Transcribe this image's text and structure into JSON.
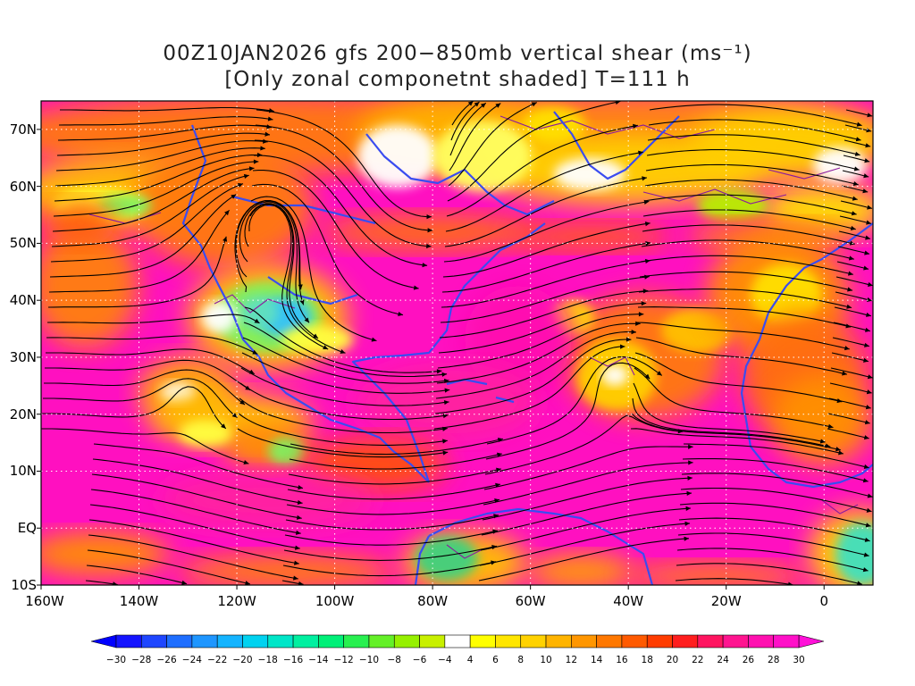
{
  "title": {
    "line1": "00Z10JAN2026 gfs 200−850mb vertical shear (ms⁻¹)",
    "line2": "[Only zonal componetnt shaded] T=111 h"
  },
  "map": {
    "lon_range": [
      -160,
      10
    ],
    "lat_range": [
      -10,
      75
    ],
    "lat_labels": [
      "70N",
      "60N",
      "50N",
      "40N",
      "30N",
      "20N",
      "10N",
      "EQ",
      "10S"
    ],
    "lat_values": [
      70,
      60,
      50,
      40,
      30,
      20,
      10,
      0,
      -10
    ],
    "lon_labels": [
      "160W",
      "140W",
      "120W",
      "100W",
      "80W",
      "60W",
      "40W",
      "20W",
      "0"
    ],
    "lon_values": [
      -160,
      -140,
      -120,
      -100,
      -80,
      -60,
      -40,
      -20,
      0
    ],
    "grid": true,
    "coastline_color": "#3a4cf0",
    "contour_color": "#8b1a9e",
    "streamline_color": "#000000",
    "background_field": "magenta-dominant strong westerly shear"
  },
  "colorbar": {
    "ticks": [
      "−30",
      "−28",
      "−26",
      "−24",
      "−22",
      "−20",
      "−18",
      "−16",
      "−14",
      "−12",
      "−10",
      "−8",
      "−6",
      "−4",
      "4",
      "6",
      "8",
      "10",
      "12",
      "14",
      "16",
      "18",
      "20",
      "22",
      "24",
      "26",
      "28",
      "30"
    ],
    "colors": [
      "#1414ff",
      "#1e46ff",
      "#1e6eff",
      "#1e96ff",
      "#14b4ff",
      "#00d2f0",
      "#00e6c8",
      "#00f0a0",
      "#00f078",
      "#28f050",
      "#64f028",
      "#96f000",
      "#c8f000",
      "#ffffff",
      "#ffff00",
      "#ffe600",
      "#ffd200",
      "#ffb400",
      "#ff9600",
      "#ff7800",
      "#ff5a00",
      "#ff3c00",
      "#ff1e1e",
      "#ff1460",
      "#ff1490",
      "#ff10b0",
      "#ff10c8"
    ],
    "end_left": "#0000ff",
    "end_right": "#ff10d8"
  }
}
